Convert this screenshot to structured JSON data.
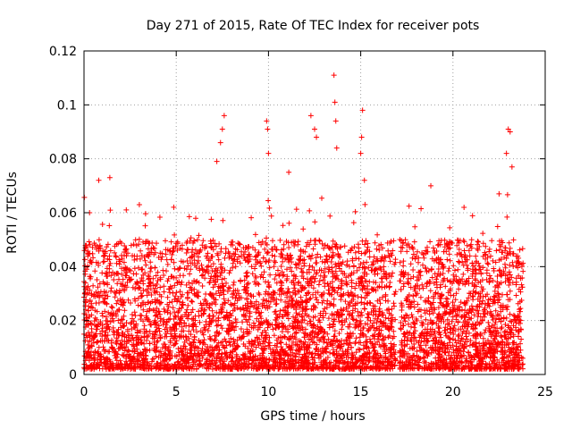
{
  "chart_data": {
    "type": "scatter",
    "title": "Day 271 of 2015, Rate Of TEC Index for receiver pots",
    "xlabel": "GPS time / hours",
    "ylabel": "ROTI / TECUs",
    "xlim": [
      0,
      25
    ],
    "ylim": [
      0,
      0.12
    ],
    "grid": true,
    "x_ticks": [
      0,
      5,
      10,
      15,
      20,
      25
    ],
    "x_tick_labels": [
      "0",
      "5",
      "10",
      "15",
      "20",
      "25"
    ],
    "y_ticks": [
      0,
      0.02,
      0.04,
      0.06,
      0.08,
      0.1,
      0.12
    ],
    "y_tick_labels": [
      "0",
      "0.02",
      "0.04",
      "0.06",
      "0.08",
      "0.1",
      "0.12"
    ],
    "marker": "+",
    "marker_color": "#ff0000",
    "notable_points": [
      {
        "x": 0.3,
        "y": 0.06
      },
      {
        "x": 0.8,
        "y": 0.072
      },
      {
        "x": 1.4,
        "y": 0.073
      },
      {
        "x": 3.0,
        "y": 0.063
      },
      {
        "x": 7.2,
        "y": 0.079
      },
      {
        "x": 7.4,
        "y": 0.086
      },
      {
        "x": 7.5,
        "y": 0.091
      },
      {
        "x": 7.6,
        "y": 0.096
      },
      {
        "x": 9.9,
        "y": 0.094
      },
      {
        "x": 9.95,
        "y": 0.091
      },
      {
        "x": 10.0,
        "y": 0.082
      },
      {
        "x": 11.1,
        "y": 0.075
      },
      {
        "x": 12.3,
        "y": 0.096
      },
      {
        "x": 12.5,
        "y": 0.091
      },
      {
        "x": 12.6,
        "y": 0.088
      },
      {
        "x": 13.55,
        "y": 0.111
      },
      {
        "x": 13.6,
        "y": 0.101
      },
      {
        "x": 13.65,
        "y": 0.094
      },
      {
        "x": 13.7,
        "y": 0.084
      },
      {
        "x": 15.1,
        "y": 0.098
      },
      {
        "x": 15.05,
        "y": 0.088
      },
      {
        "x": 15.0,
        "y": 0.082
      },
      {
        "x": 15.2,
        "y": 0.072
      },
      {
        "x": 18.8,
        "y": 0.07
      },
      {
        "x": 20.6,
        "y": 0.062
      },
      {
        "x": 22.5,
        "y": 0.067
      },
      {
        "x": 22.9,
        "y": 0.082
      },
      {
        "x": 23.0,
        "y": 0.091
      },
      {
        "x": 23.1,
        "y": 0.09
      },
      {
        "x": 23.2,
        "y": 0.077
      }
    ],
    "data_gaps_hours": [
      [
        16.9,
        17.1
      ]
    ],
    "bulk_range": {
      "y_min": 0.002,
      "y_typical_max": 0.05
    },
    "series_extent_hours": [
      0,
      23.8
    ]
  }
}
